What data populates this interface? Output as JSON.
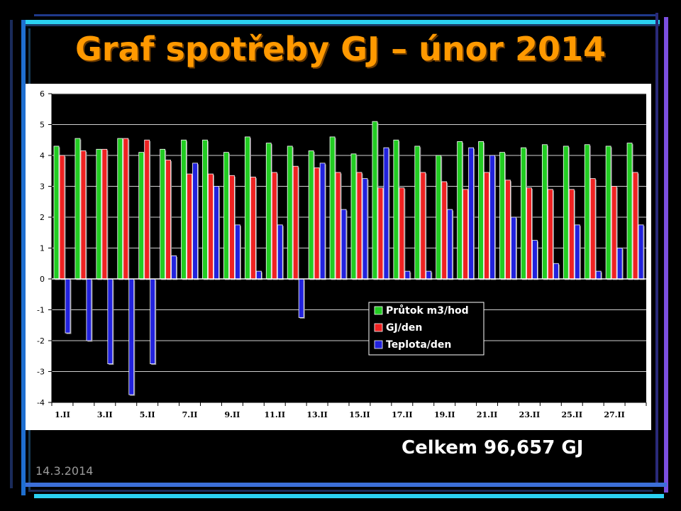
{
  "slide": {
    "title": "Graf spotřeby GJ – únor 2014",
    "total": "Celkem 96,657 GJ",
    "date": "14.3.2014"
  },
  "chart_data": {
    "type": "bar",
    "ylim": [
      -4,
      6
    ],
    "yticks": [
      "6",
      "5",
      "4",
      "3",
      "2",
      "1",
      "0",
      "-1",
      "-2",
      "-3",
      "-4"
    ],
    "xtick_labels": [
      "1.II",
      "3.II",
      "5.II",
      "7.II",
      "9.II",
      "11.II",
      "13.II",
      "15.II",
      "17.II",
      "19.II",
      "21.II",
      "23.II",
      "25.II",
      "27.II"
    ],
    "categories": [
      "1.II",
      "2.II",
      "3.II",
      "4.II",
      "5.II",
      "6.II",
      "7.II",
      "8.II",
      "9.II",
      "10.II",
      "11.II",
      "12.II",
      "13.II",
      "14.II",
      "15.II",
      "16.II",
      "17.II",
      "18.II",
      "19.II",
      "20.II",
      "21.II",
      "22.II",
      "23.II",
      "24.II",
      "25.II",
      "26.II",
      "27.II",
      "28.II"
    ],
    "grid": true,
    "legend_position": "right-middle",
    "series": [
      {
        "name": "Průtok m3/hod",
        "color": "#22cc22",
        "values": [
          4.3,
          4.55,
          4.2,
          4.55,
          4.1,
          4.2,
          4.5,
          4.5,
          4.1,
          4.6,
          4.4,
          4.3,
          4.15,
          4.6,
          4.05,
          5.1,
          4.5,
          4.3,
          4.0,
          4.45,
          4.45,
          4.1,
          4.25,
          4.35,
          4.3,
          4.35,
          4.3,
          4.4
        ]
      },
      {
        "name": "GJ/den",
        "color": "#ee2222",
        "values": [
          4.0,
          4.15,
          4.2,
          4.55,
          4.5,
          3.85,
          3.4,
          3.4,
          3.35,
          3.3,
          3.45,
          3.65,
          3.6,
          3.45,
          3.45,
          2.95,
          2.95,
          3.45,
          3.15,
          2.9,
          3.45,
          3.2,
          2.95,
          2.9,
          2.9,
          3.25,
          3.0,
          3.45
        ]
      },
      {
        "name": "Teplota/den",
        "color": "#2222dd",
        "values": [
          -1.75,
          -2.0,
          -2.75,
          -3.75,
          -2.75,
          0.75,
          3.75,
          3.0,
          1.75,
          0.25,
          1.75,
          -1.25,
          3.75,
          2.25,
          3.25,
          4.25,
          0.25,
          0.25,
          2.25,
          4.25,
          4.0,
          2.0,
          1.25,
          0.5,
          1.75,
          0.25,
          1.0,
          1.75
        ]
      }
    ]
  }
}
